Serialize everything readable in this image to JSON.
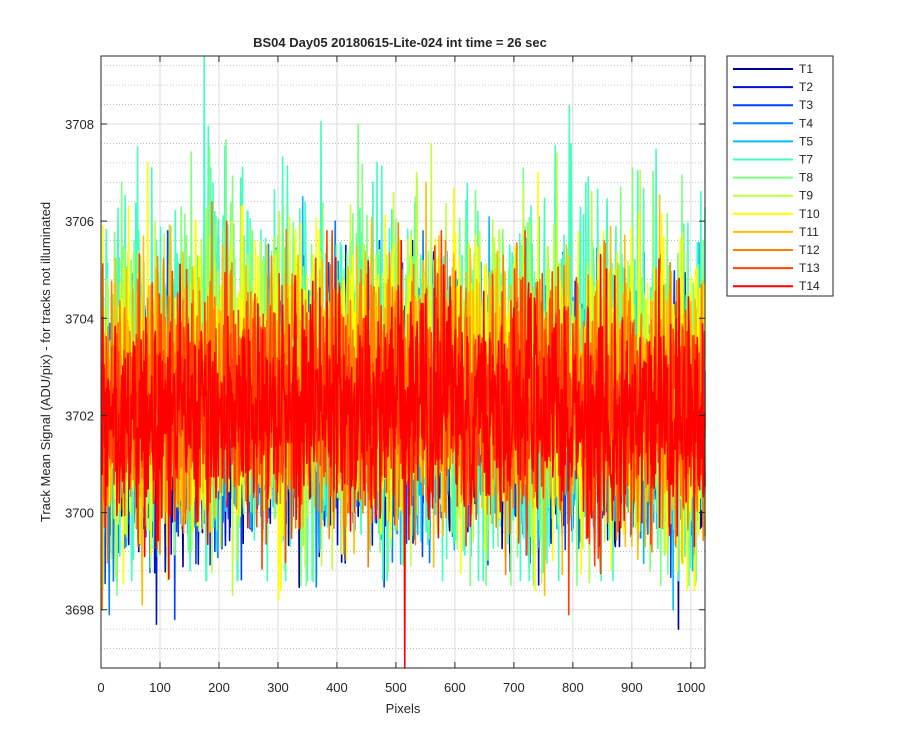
{
  "chart_data": {
    "type": "line",
    "title": "BS04 Day05 20180615-Lite-024 int time = 26 sec",
    "xlabel": "Pixels",
    "ylabel": "Track Mean Signal (ADU/pix) - for tracks not illuminated",
    "xlim": [
      0,
      1024
    ],
    "ylim": [
      3696.8,
      3709.4
    ],
    "xticks": [
      0,
      100,
      200,
      300,
      400,
      500,
      600,
      700,
      800,
      900,
      1000
    ],
    "yticks": [
      3698,
      3700,
      3702,
      3704,
      3706,
      3708
    ],
    "xtick_labels": [
      "0",
      "100",
      "200",
      "300",
      "400",
      "500",
      "600",
      "700",
      "800",
      "900",
      "1000"
    ],
    "ytick_labels": [
      "3698",
      "3700",
      "3702",
      "3704",
      "3706",
      "3708"
    ],
    "grid": true,
    "minor_grid_y": true,
    "legend_position": "outside-top-right",
    "x_sampling": "pixels 1 to 1024, one sample per pixel",
    "series": [
      {
        "name": "T1",
        "color": "#00008f",
        "mean": 3701.6,
        "min": 3697.6,
        "max": 3705.6
      },
      {
        "name": "T2",
        "color": "#0010cf",
        "mean": 3701.7,
        "min": 3697.7,
        "max": 3705.7
      },
      {
        "name": "T3",
        "color": "#0040ff",
        "mean": 3701.8,
        "min": 3697.8,
        "max": 3705.8
      },
      {
        "name": "T4",
        "color": "#0080ff",
        "mean": 3701.9,
        "min": 3697.9,
        "max": 3706.0
      },
      {
        "name": "T5",
        "color": "#00bfff",
        "mean": 3702.0,
        "min": 3698.0,
        "max": 3706.5
      },
      {
        "name": "T7",
        "color": "#40ffbf",
        "mean": 3702.6,
        "min": 3698.4,
        "max": 3709.4
      },
      {
        "name": "T8",
        "color": "#80ff80",
        "mean": 3702.5,
        "min": 3698.3,
        "max": 3708.0
      },
      {
        "name": "T9",
        "color": "#bfff40",
        "mean": 3702.4,
        "min": 3698.3,
        "max": 3707.6
      },
      {
        "name": "T10",
        "color": "#ffff00",
        "mean": 3702.3,
        "min": 3698.2,
        "max": 3707.2
      },
      {
        "name": "T11",
        "color": "#ffbf00",
        "mean": 3702.2,
        "min": 3698.1,
        "max": 3706.8
      },
      {
        "name": "T12",
        "color": "#ff8000",
        "mean": 3702.1,
        "min": 3698.0,
        "max": 3706.4
      },
      {
        "name": "T13",
        "color": "#ff4000",
        "mean": 3702.0,
        "min": 3697.9,
        "max": 3706.0
      },
      {
        "name": "T14",
        "color": "#ff0000",
        "mean": 3701.9,
        "min": 3696.8,
        "max": 3705.6
      }
    ]
  }
}
